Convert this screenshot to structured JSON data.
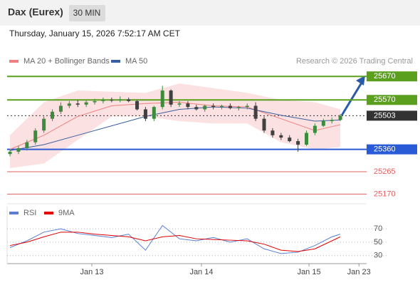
{
  "header": {
    "title": "Dax (Eurex)",
    "interval": "30 MIN",
    "datetime": "Thursday, January 15, 2026 7:52:17 AM CET"
  },
  "chart_data": [
    {
      "type": "candlestick",
      "credit": "Research © 2026 Trading Central",
      "open": [
        25340,
        25350,
        25365,
        25390,
        25440,
        25490,
        25520,
        25545,
        25555,
        25550,
        25560,
        25565,
        25570,
        25568,
        25572,
        25565,
        25530,
        25490,
        25540,
        25610,
        25550,
        25555,
        25540,
        25530,
        25545,
        25540,
        25545,
        25535,
        25540,
        25545,
        25490,
        25440,
        25420,
        25410,
        25395,
        25380,
        25430,
        25460,
        25480,
        25485
      ],
      "high": [
        25360,
        25375,
        25400,
        25450,
        25500,
        25530,
        25560,
        25565,
        25570,
        25568,
        25575,
        25580,
        25580,
        25585,
        25580,
        25570,
        25540,
        25545,
        25630,
        25615,
        25565,
        25565,
        25550,
        25550,
        25555,
        25550,
        25555,
        25545,
        25555,
        25560,
        25500,
        25450,
        25430,
        25420,
        25405,
        25440,
        25470,
        25490,
        25495,
        25510
      ],
      "low": [
        25330,
        25340,
        25355,
        25380,
        25430,
        25480,
        25510,
        25535,
        25540,
        25540,
        25550,
        25555,
        25560,
        25560,
        25560,
        25525,
        25480,
        25480,
        25530,
        25540,
        25540,
        25530,
        25525,
        25520,
        25530,
        25530,
        25530,
        25525,
        25530,
        25480,
        25430,
        25410,
        25400,
        25390,
        25350,
        25375,
        25420,
        25455,
        25470,
        25480
      ],
      "close": [
        25350,
        25365,
        25390,
        25440,
        25490,
        25520,
        25545,
        25555,
        25550,
        25560,
        25565,
        25570,
        25568,
        25572,
        25565,
        25530,
        25490,
        25540,
        25610,
        25550,
        25555,
        25540,
        25530,
        25545,
        25540,
        25545,
        25535,
        25540,
        25545,
        25490,
        25440,
        25420,
        25410,
        25395,
        25380,
        25430,
        25460,
        25480,
        25485,
        25503
      ],
      "up_color": "#3d8b3d",
      "down_color": "#404040",
      "series": [
        {
          "name": "MA 20 + Bollinger Bands",
          "color": "#f08080",
          "x": [
            0,
            4,
            8,
            12,
            16,
            20,
            24,
            28,
            32,
            36,
            39
          ],
          "values": [
            25360,
            25420,
            25500,
            25545,
            25555,
            25560,
            25545,
            25540,
            25490,
            25440,
            25465
          ]
        },
        {
          "name": "MA 50",
          "color": "#3a5fa0",
          "x": [
            0,
            4,
            8,
            12,
            16,
            20,
            24,
            28,
            32,
            36,
            39
          ],
          "values": [
            25355,
            25380,
            25420,
            25460,
            25500,
            25530,
            25540,
            25535,
            25505,
            25480,
            25485
          ]
        }
      ],
      "bands": {
        "color": "#fadada",
        "x": [
          0,
          4,
          8,
          12,
          16,
          20,
          24,
          28,
          32,
          36,
          39
        ],
        "upper": [
          25420,
          25560,
          25610,
          25605,
          25600,
          25640,
          25620,
          25600,
          25570,
          25560,
          25530
        ],
        "lower": [
          25280,
          25300,
          25400,
          25500,
          25500,
          25480,
          25470,
          25470,
          25390,
          25360,
          25370
        ]
      },
      "levels": [
        {
          "value": 25670,
          "color": "#5aa01e",
          "boxed": true
        },
        {
          "value": 25570,
          "color": "#5aa01e",
          "boxed": true
        },
        {
          "value": 25503,
          "color": "#333333",
          "boxed": true,
          "dotted": true
        },
        {
          "value": 25360,
          "color": "#2a5bd7",
          "boxed": true
        },
        {
          "value": 25265,
          "color": "#e06060",
          "boxed": false
        },
        {
          "value": 25170,
          "color": "#e06060",
          "boxed": false
        }
      ],
      "ylim": [
        25150,
        25710
      ],
      "xlim": [
        -0.34,
        42.1
      ]
    },
    {
      "type": "line",
      "series": [
        {
          "name": "RSI",
          "color": "#5b7fd6",
          "x": [
            0,
            2,
            4,
            6,
            8,
            10,
            12,
            14,
            16,
            18,
            20,
            22,
            24,
            26,
            28,
            30,
            32,
            34,
            36,
            38,
            39
          ],
          "values": [
            42,
            52,
            65,
            70,
            63,
            60,
            57,
            62,
            38,
            75,
            55,
            52,
            57,
            50,
            55,
            40,
            33,
            35,
            45,
            58,
            62
          ]
        },
        {
          "name": "9MA",
          "color": "#e00000",
          "x": [
            0,
            2,
            4,
            6,
            8,
            10,
            12,
            14,
            16,
            18,
            20,
            22,
            24,
            26,
            28,
            30,
            32,
            34,
            36,
            38,
            39
          ],
          "values": [
            45,
            50,
            58,
            65,
            65,
            62,
            60,
            58,
            52,
            58,
            60,
            55,
            54,
            53,
            52,
            47,
            38,
            36,
            40,
            52,
            58
          ]
        }
      ],
      "ylim": [
        20,
        84
      ],
      "yticks": [
        30,
        50,
        70
      ],
      "xlim": [
        -0.34,
        42.1
      ],
      "xticks": [
        {
          "value": 9.66,
          "label": "Jan 13"
        },
        {
          "value": 22.6,
          "label": "Jan 14"
        },
        {
          "value": 35.3,
          "label": "Jan 15"
        },
        {
          "value": 41.2,
          "label": "Jan 23"
        }
      ]
    }
  ]
}
